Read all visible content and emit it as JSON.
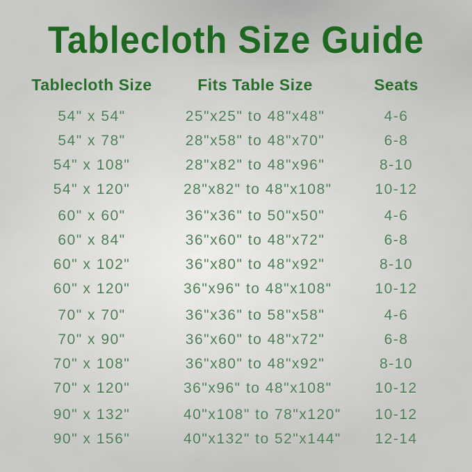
{
  "title": "Tablecloth Size Guide",
  "colors": {
    "title_green": "#1d6721",
    "header_green": "#266c2b",
    "row_text_green": "#4b7d55",
    "background_silver": "#c9c9c6"
  },
  "chart_data": {
    "type": "table",
    "title": "Tablecloth Size Guide",
    "columns": [
      "Tablecloth Size",
      "Fits Table Size",
      "Seats"
    ],
    "rows": [
      [
        "54\" x 54\"",
        "25\"x25\" to 48\"x48\"",
        "4-6"
      ],
      [
        "54\" x 78\"",
        "28\"x58\" to 48\"x70\"",
        "6-8"
      ],
      [
        "54\" x 108\"",
        "28\"x82\" to 48\"x96\"",
        "8-10"
      ],
      [
        "54\" x 120\"",
        "28\"x82\" to 48\"x108\"",
        "10-12"
      ],
      [
        "60\" x 60\"",
        "36\"x36\" to 50\"x50\"",
        "4-6"
      ],
      [
        "60\" x 84\"",
        "36\"x60\" to 48\"x72\"",
        "6-8"
      ],
      [
        "60\" x 102\"",
        "36\"x80\" to 48\"x92\"",
        "8-10"
      ],
      [
        "60\" x 120\"",
        "36\"x96\" to 48\"x108\"",
        "10-12"
      ],
      [
        "70\" x 70\"",
        "36\"x36\" to 58\"x58\"",
        "4-6"
      ],
      [
        "70\" x 90\"",
        "36\"x60\" to 48\"x72\"",
        "6-8"
      ],
      [
        "70\" x 108\"",
        "36\"x80\" to 48\"x92\"",
        "8-10"
      ],
      [
        "70\" x 120\"",
        "36\"x96\" to 48\"x108\"",
        "10-12"
      ],
      [
        "90\" x 132\"",
        "40\"x108\" to 78\"x120\"",
        "10-12"
      ],
      [
        "90\" x 156\"",
        "40\"x132\" to 52\"x144\"",
        "12-14"
      ]
    ],
    "layout": {
      "grouped_by_first_width": true,
      "group_breaks_after_rows": [
        4,
        8,
        12
      ],
      "grid": false,
      "borders": false
    }
  }
}
